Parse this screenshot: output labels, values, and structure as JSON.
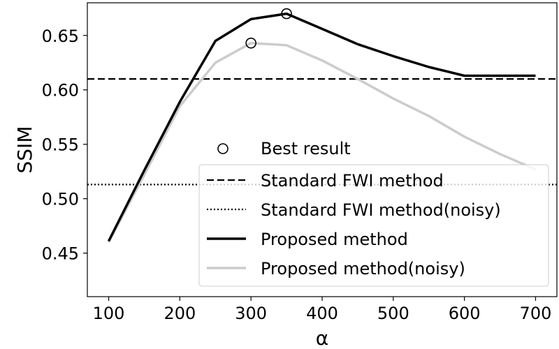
{
  "chart_data": {
    "type": "line",
    "xlabel": "α",
    "ylabel": "SSIM",
    "xlim": [
      70,
      730
    ],
    "ylim": [
      0.41,
      0.68
    ],
    "xticks": [
      100,
      200,
      300,
      400,
      500,
      600,
      700
    ],
    "yticks": [
      0.45,
      0.5,
      0.55,
      0.6,
      0.65
    ],
    "ytick_labels": [
      "0.45",
      "0.50",
      "0.55",
      "0.60",
      "0.65"
    ],
    "grid": false,
    "legend_position": "lower-right",
    "series": [
      {
        "name": "Standard FWI method",
        "kind": "hline",
        "y": 0.61,
        "color": "#000000",
        "dash": "dashed"
      },
      {
        "name": "Standard FWI method(noisy)",
        "kind": "hline",
        "y": 0.513,
        "color": "#000000",
        "dash": "dotted"
      },
      {
        "name": "Proposed method",
        "kind": "line",
        "color": "#000000",
        "x": [
          100,
          150,
          200,
          250,
          300,
          350,
          400,
          450,
          500,
          550,
          600,
          650,
          700
        ],
        "y": [
          0.461,
          0.526,
          0.589,
          0.645,
          0.665,
          0.67,
          0.656,
          0.642,
          0.631,
          0.621,
          0.613,
          0.613,
          0.613
        ]
      },
      {
        "name": "Proposed method(noisy)",
        "kind": "line",
        "color": "#cccccc",
        "x": [
          100,
          150,
          200,
          250,
          300,
          350,
          400,
          450,
          500,
          550,
          600,
          650,
          700
        ],
        "y": [
          0.46,
          0.522,
          0.585,
          0.625,
          0.643,
          0.641,
          0.627,
          0.61,
          0.592,
          0.576,
          0.557,
          0.541,
          0.527
        ]
      }
    ],
    "markers": {
      "name": "Best result",
      "shape": "open-circle",
      "points": [
        {
          "x": 350,
          "y": 0.67
        },
        {
          "x": 300,
          "y": 0.643
        }
      ]
    }
  }
}
